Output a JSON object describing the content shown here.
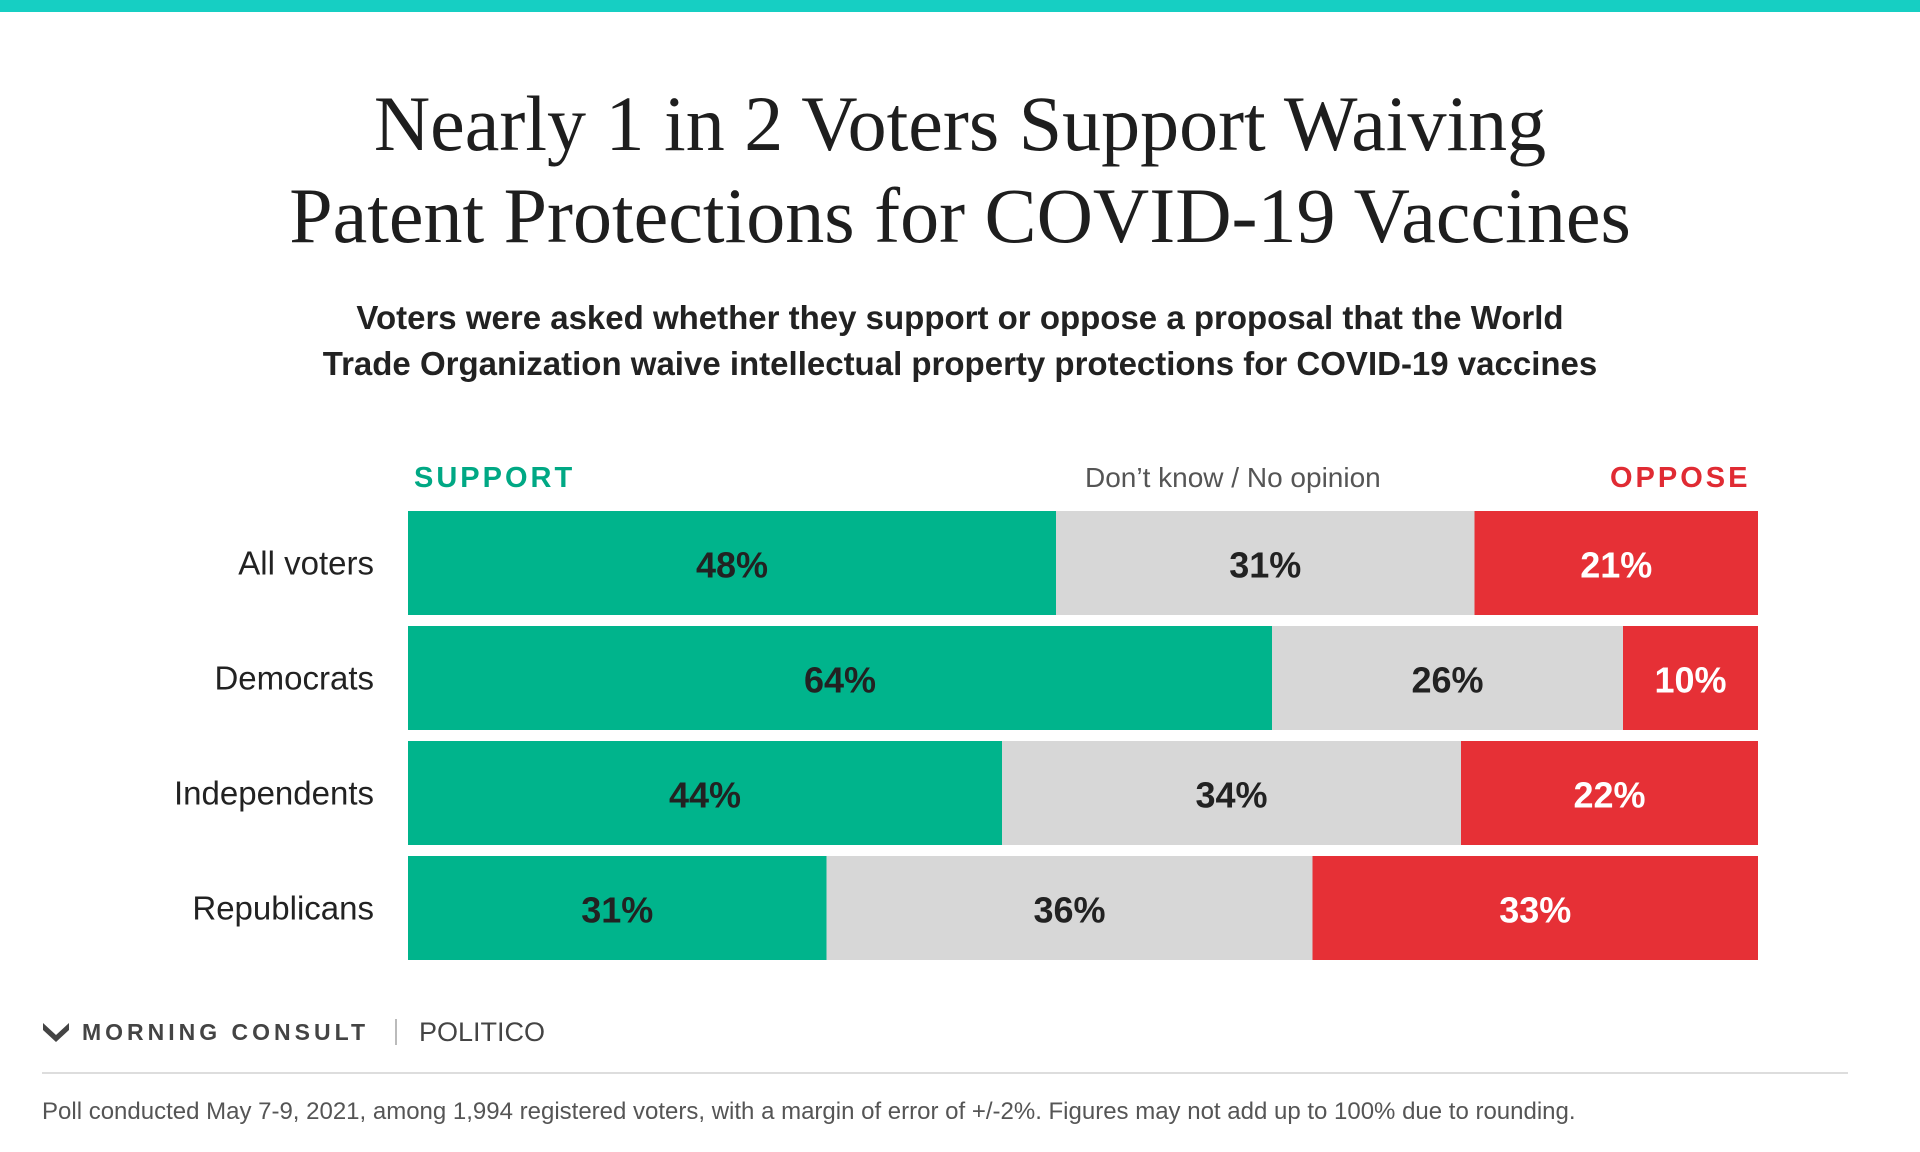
{
  "colors": {
    "accent_top": "#16cfc3",
    "support": "#00b48c",
    "dont_know": "#d7d7d7",
    "oppose": "#e63036",
    "support_text": "#00a884",
    "oppose_text": "#e02b33"
  },
  "title_lines": [
    "Nearly 1 in 2 Voters Support Waiving",
    "Patent Protections for COVID-19 Vaccines"
  ],
  "subtitle_lines": [
    "Voters were asked whether they support or oppose a proposal that the World",
    "Trade Organization waive intellectual property protections for COVID-19 vaccines"
  ],
  "legend": {
    "support": "SUPPORT",
    "dont_know": "Don’t know / No opinion",
    "oppose": "OPPOSE"
  },
  "chart_data": {
    "type": "bar",
    "orientation": "horizontal",
    "stacked": true,
    "categories": [
      "All voters",
      "Democrats",
      "Independents",
      "Republicans"
    ],
    "series": [
      {
        "name": "SUPPORT",
        "values": [
          48,
          64,
          44,
          31
        ],
        "labels": [
          "48%",
          "64%",
          "44%",
          "31%"
        ],
        "color": "#00b48c",
        "label_color": "#222222"
      },
      {
        "name": "Don’t know / No opinion",
        "values": [
          31,
          26,
          34,
          36
        ],
        "labels": [
          "31%",
          "26%",
          "34%",
          "36%"
        ],
        "color": "#d7d7d7",
        "label_color": "#222222"
      },
      {
        "name": "OPPOSE",
        "values": [
          21,
          10,
          22,
          33
        ],
        "labels": [
          "21%",
          "10%",
          "22%",
          "33%"
        ],
        "color": "#e63036",
        "label_color": "#ffffff"
      }
    ],
    "xlim": [
      0,
      100
    ],
    "legend_position": "top"
  },
  "footer": {
    "brand": "MORNING CONSULT",
    "partner": "POLITICO",
    "note": "Poll conducted May 7-9, 2021, among 1,994 registered voters, with a margin of error of +/-2%. Figures may not add up to 100% due to rounding."
  }
}
